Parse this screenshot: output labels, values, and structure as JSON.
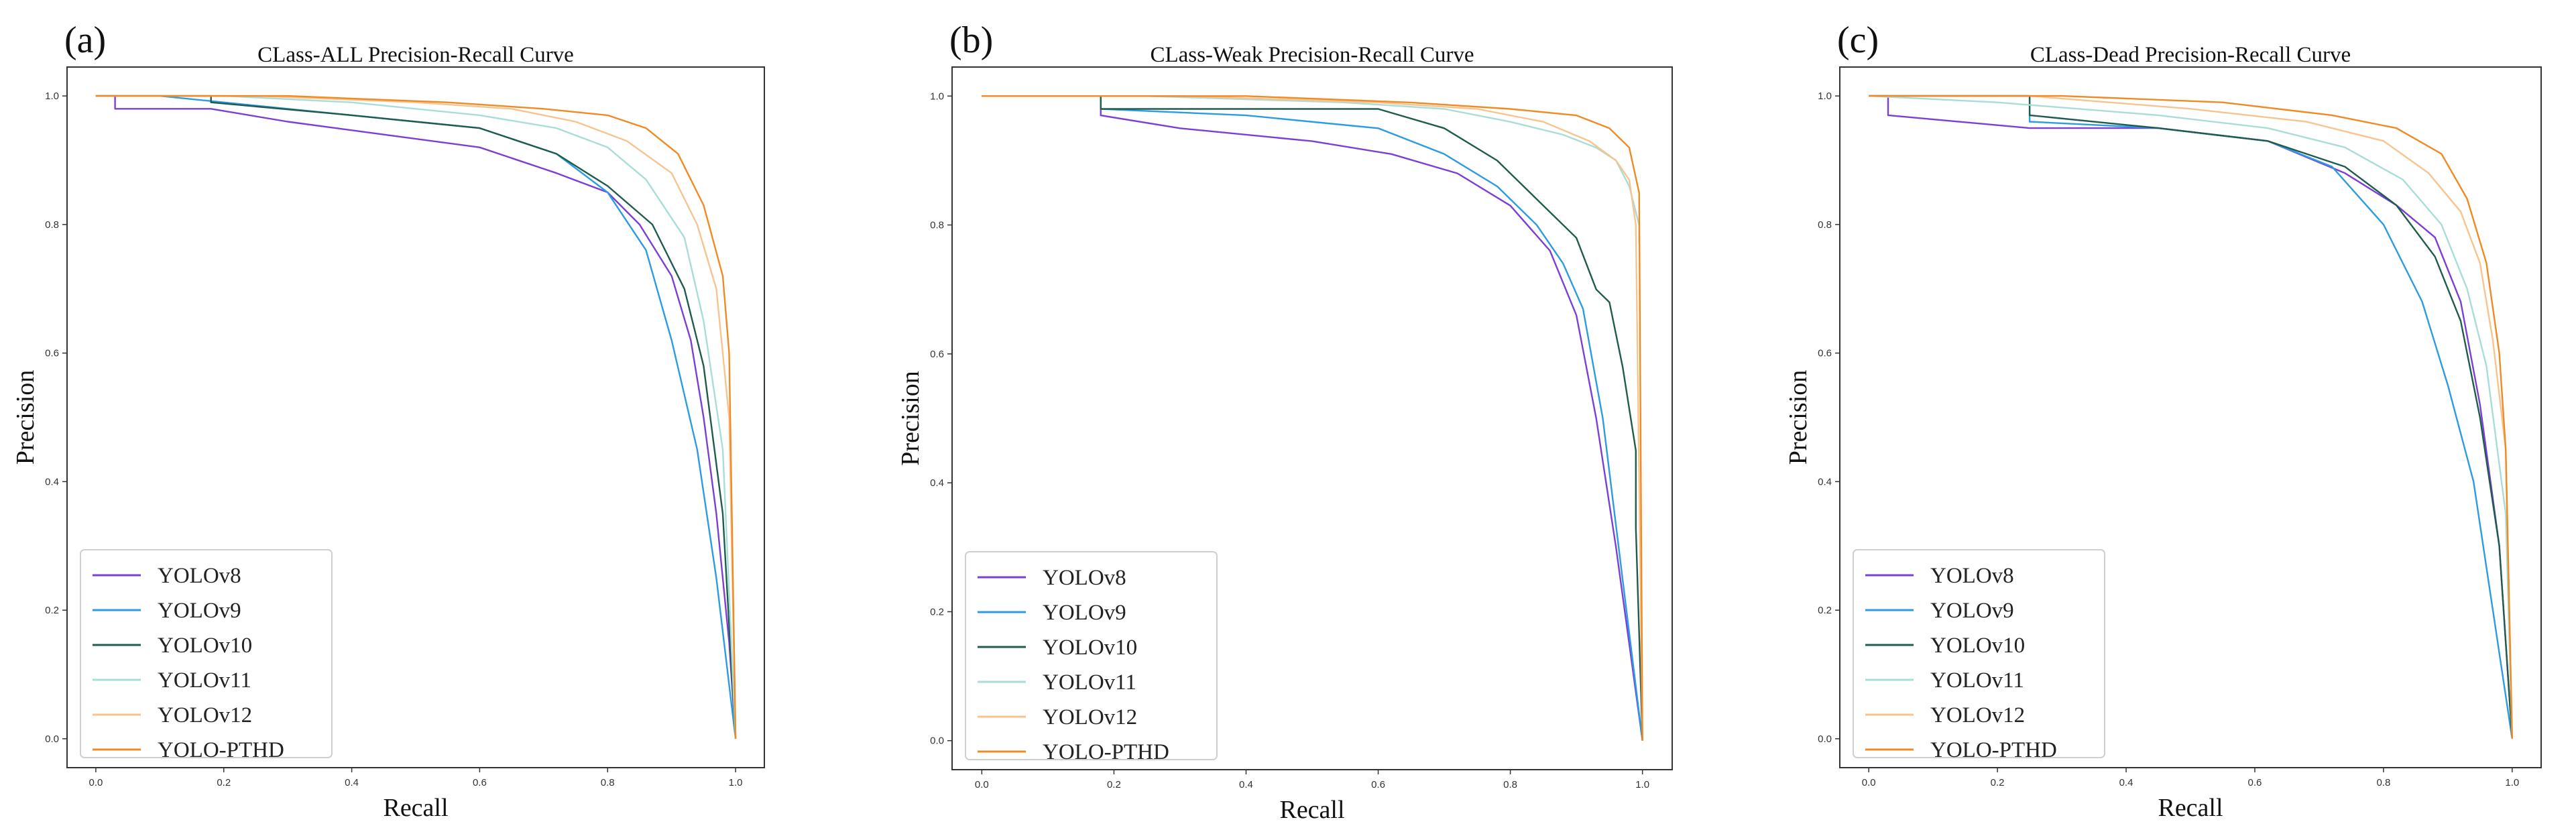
{
  "chart_data": [
    {
      "panel": "(a)",
      "type": "line",
      "title": "CLass-ALL Precision-Recall Curve",
      "xlabel": "Recall",
      "ylabel": "Precision",
      "xlim": [
        0,
        1
      ],
      "ylim": [
        0,
        1
      ],
      "xticks": [
        "0.0",
        "0.2",
        "0.4",
        "0.6",
        "0.8",
        "1.0"
      ],
      "yticks": [
        "0.0",
        "0.2",
        "0.4",
        "0.6",
        "0.8",
        "1.0"
      ],
      "legend_position": "lower-left",
      "series": [
        {
          "name": "YOLOv8",
          "color": "#7b3fd6",
          "x": [
            0,
            0.03,
            0.03,
            0.18,
            0.3,
            0.45,
            0.6,
            0.72,
            0.8,
            0.85,
            0.9,
            0.93,
            0.95,
            0.97,
            0.99,
            1.0
          ],
          "y": [
            1.0,
            1.0,
            0.98,
            0.98,
            0.96,
            0.94,
            0.92,
            0.88,
            0.85,
            0.8,
            0.72,
            0.62,
            0.5,
            0.35,
            0.15,
            0.0
          ]
        },
        {
          "name": "YOLOv9",
          "color": "#2b9be3",
          "x": [
            0,
            0.1,
            0.2,
            0.4,
            0.6,
            0.72,
            0.8,
            0.86,
            0.9,
            0.94,
            0.97,
            1.0
          ],
          "y": [
            1.0,
            1.0,
            0.99,
            0.97,
            0.95,
            0.91,
            0.85,
            0.76,
            0.62,
            0.45,
            0.25,
            0.0
          ]
        },
        {
          "name": "YOLOv10",
          "color": "#1f5c4e",
          "x": [
            0,
            0.18,
            0.18,
            0.4,
            0.6,
            0.72,
            0.8,
            0.87,
            0.92,
            0.95,
            0.98,
            1.0
          ],
          "y": [
            1.0,
            1.0,
            0.99,
            0.97,
            0.95,
            0.91,
            0.86,
            0.8,
            0.7,
            0.58,
            0.35,
            0.0
          ]
        },
        {
          "name": "YOLOv11",
          "color": "#a8ddd8",
          "x": [
            0,
            0.2,
            0.4,
            0.6,
            0.72,
            0.8,
            0.86,
            0.92,
            0.95,
            0.98,
            1.0
          ],
          "y": [
            1.0,
            1.0,
            0.99,
            0.97,
            0.95,
            0.92,
            0.87,
            0.78,
            0.65,
            0.45,
            0.0
          ]
        },
        {
          "name": "YOLOv12",
          "color": "#f7c48f",
          "x": [
            0,
            0.25,
            0.5,
            0.65,
            0.75,
            0.83,
            0.9,
            0.94,
            0.97,
            0.99,
            1.0
          ],
          "y": [
            1.0,
            1.0,
            0.99,
            0.98,
            0.96,
            0.93,
            0.88,
            0.8,
            0.7,
            0.5,
            0.0
          ]
        },
        {
          "name": "YOLO-PTHD",
          "color": "#f08a24",
          "x": [
            0,
            0.3,
            0.55,
            0.7,
            0.8,
            0.86,
            0.91,
            0.95,
            0.98,
            0.99,
            1.0
          ],
          "y": [
            1.0,
            1.0,
            0.99,
            0.98,
            0.97,
            0.95,
            0.91,
            0.83,
            0.72,
            0.6,
            0.0
          ]
        }
      ]
    },
    {
      "panel": "(b)",
      "type": "line",
      "title": "CLass-Weak Precision-Recall Curve",
      "xlabel": "Recall",
      "ylabel": "Precision",
      "xlim": [
        0,
        1
      ],
      "ylim": [
        0,
        1
      ],
      "xticks": [
        "0.0",
        "0.2",
        "0.4",
        "0.6",
        "0.8",
        "1.0"
      ],
      "yticks": [
        "0.0",
        "0.2",
        "0.4",
        "0.6",
        "0.8",
        "1.0"
      ],
      "legend_position": "lower-left",
      "series": [
        {
          "name": "YOLOv8",
          "color": "#7b3fd6",
          "x": [
            0,
            0.18,
            0.18,
            0.3,
            0.5,
            0.62,
            0.72,
            0.8,
            0.86,
            0.9,
            0.93,
            0.96,
            1.0
          ],
          "y": [
            1.0,
            1.0,
            0.97,
            0.95,
            0.93,
            0.91,
            0.88,
            0.83,
            0.76,
            0.66,
            0.5,
            0.3,
            0.0
          ]
        },
        {
          "name": "YOLOv9",
          "color": "#2b9be3",
          "x": [
            0,
            0.18,
            0.18,
            0.4,
            0.6,
            0.7,
            0.78,
            0.84,
            0.88,
            0.91,
            0.94,
            0.97,
            1.0
          ],
          "y": [
            1.0,
            1.0,
            0.98,
            0.97,
            0.95,
            0.91,
            0.86,
            0.8,
            0.74,
            0.67,
            0.5,
            0.25,
            0.0
          ]
        },
        {
          "name": "YOLOv10",
          "color": "#1f5c4e",
          "x": [
            0,
            0.18,
            0.18,
            0.6,
            0.7,
            0.78,
            0.84,
            0.9,
            0.93,
            0.95,
            0.97,
            0.99,
            0.99,
            1.0
          ],
          "y": [
            1.0,
            1.0,
            0.98,
            0.98,
            0.95,
            0.9,
            0.84,
            0.78,
            0.7,
            0.68,
            0.58,
            0.45,
            0.33,
            0.0
          ]
        },
        {
          "name": "YOLOv11",
          "color": "#a8ddd8",
          "x": [
            0,
            0.25,
            0.55,
            0.7,
            0.8,
            0.88,
            0.93,
            0.96,
            0.98,
            0.995,
            0.995
          ],
          "y": [
            1.0,
            1.0,
            0.99,
            0.98,
            0.96,
            0.94,
            0.92,
            0.9,
            0.86,
            0.8,
            0.77
          ]
        },
        {
          "name": "YOLOv12",
          "color": "#f7c48f",
          "x": [
            0,
            0.3,
            0.6,
            0.75,
            0.85,
            0.92,
            0.96,
            0.98,
            0.99,
            1.0
          ],
          "y": [
            1.0,
            1.0,
            0.99,
            0.98,
            0.96,
            0.93,
            0.9,
            0.87,
            0.8,
            0.0
          ]
        },
        {
          "name": "YOLO-PTHD",
          "color": "#f08a24",
          "x": [
            0,
            0.4,
            0.65,
            0.8,
            0.9,
            0.95,
            0.98,
            0.995,
            1.0
          ],
          "y": [
            1.0,
            1.0,
            0.99,
            0.98,
            0.97,
            0.95,
            0.92,
            0.85,
            0.0
          ]
        }
      ]
    },
    {
      "panel": "(c)",
      "type": "line",
      "title": "CLass-Dead Precision-Recall Curve",
      "xlabel": "Recall",
      "ylabel": "Precision",
      "xlim": [
        0,
        1
      ],
      "ylim": [
        0,
        1
      ],
      "xticks": [
        "0.0",
        "0.2",
        "0.4",
        "0.6",
        "0.8",
        "1.0"
      ],
      "yticks": [
        "0.0",
        "0.2",
        "0.4",
        "0.6",
        "0.8",
        "1.0"
      ],
      "legend_position": "lower-left",
      "series": [
        {
          "name": "YOLOv8",
          "color": "#7b3fd6",
          "x": [
            0,
            0.03,
            0.03,
            0.25,
            0.45,
            0.62,
            0.74,
            0.82,
            0.88,
            0.92,
            0.95,
            0.98,
            1.0
          ],
          "y": [
            1.0,
            1.0,
            0.97,
            0.95,
            0.95,
            0.93,
            0.88,
            0.83,
            0.78,
            0.68,
            0.52,
            0.3,
            0.0
          ]
        },
        {
          "name": "YOLOv9",
          "color": "#2b9be3",
          "x": [
            0,
            0.25,
            0.25,
            0.45,
            0.62,
            0.72,
            0.8,
            0.86,
            0.9,
            0.94,
            0.97,
            1.0
          ],
          "y": [
            1.0,
            1.0,
            0.96,
            0.95,
            0.93,
            0.89,
            0.8,
            0.68,
            0.55,
            0.4,
            0.2,
            0.0
          ]
        },
        {
          "name": "YOLOv10",
          "color": "#1f5c4e",
          "x": [
            0,
            0.25,
            0.25,
            0.45,
            0.62,
            0.74,
            0.82,
            0.88,
            0.92,
            0.95,
            0.98,
            1.0
          ],
          "y": [
            1.0,
            1.0,
            0.97,
            0.95,
            0.93,
            0.89,
            0.83,
            0.75,
            0.65,
            0.5,
            0.3,
            0.0
          ]
        },
        {
          "name": "YOLOv11",
          "color": "#a8ddd8",
          "x": [
            0,
            0.2,
            0.45,
            0.62,
            0.74,
            0.83,
            0.89,
            0.93,
            0.96,
            0.99,
            1.0
          ],
          "y": [
            1.0,
            0.99,
            0.97,
            0.95,
            0.92,
            0.87,
            0.8,
            0.7,
            0.58,
            0.35,
            0.0
          ]
        },
        {
          "name": "YOLOv12",
          "color": "#f7c48f",
          "x": [
            0,
            0.25,
            0.5,
            0.68,
            0.8,
            0.87,
            0.92,
            0.95,
            0.97,
            0.99,
            1.0
          ],
          "y": [
            1.0,
            1.0,
            0.98,
            0.96,
            0.93,
            0.88,
            0.82,
            0.74,
            0.62,
            0.45,
            0.0
          ]
        },
        {
          "name": "YOLO-PTHD",
          "color": "#f08a24",
          "x": [
            0,
            0.3,
            0.55,
            0.72,
            0.82,
            0.89,
            0.93,
            0.96,
            0.98,
            0.99,
            1.0
          ],
          "y": [
            1.0,
            1.0,
            0.99,
            0.97,
            0.95,
            0.91,
            0.84,
            0.74,
            0.6,
            0.45,
            0.0
          ]
        }
      ]
    }
  ]
}
